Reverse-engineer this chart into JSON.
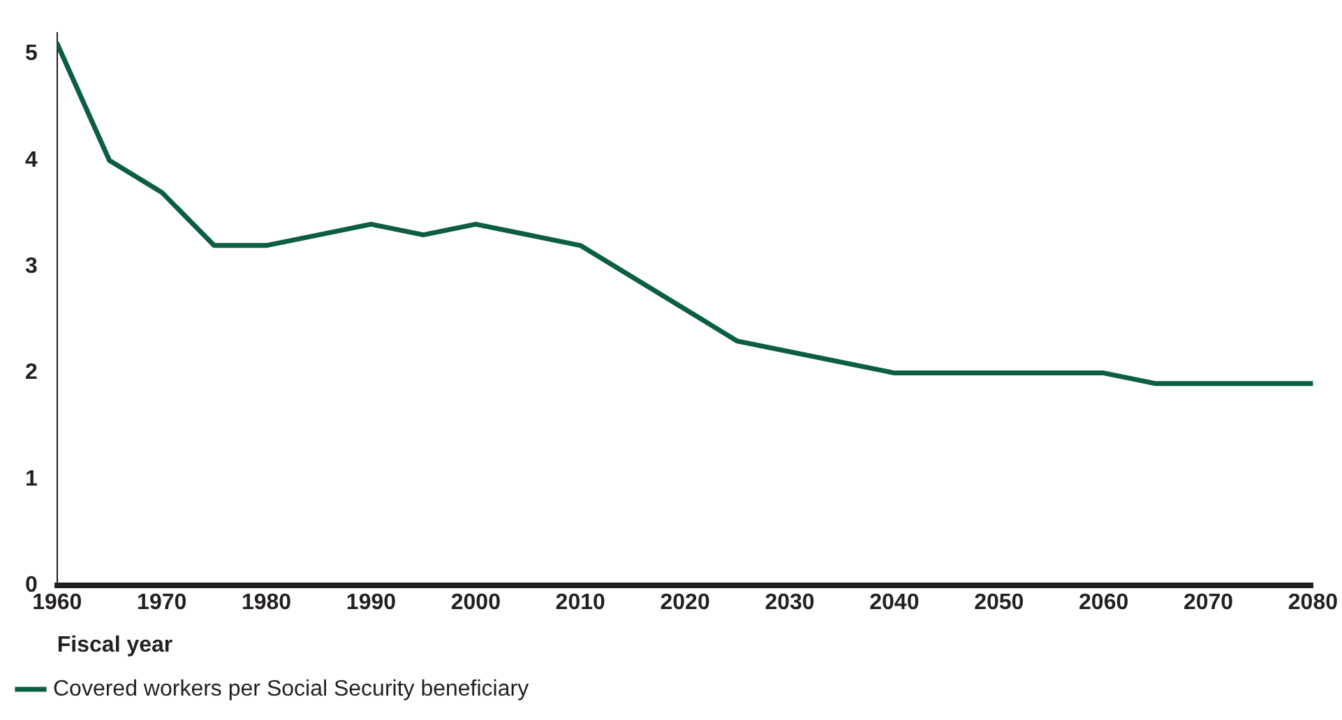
{
  "chart_data": {
    "type": "line",
    "xlabel": "Fiscal year",
    "x": [
      1960,
      1965,
      1970,
      1975,
      1980,
      1990,
      1995,
      2000,
      2010,
      2025,
      2040,
      2060,
      2065,
      2080
    ],
    "series": [
      {
        "name": "Covered workers per Social Security beneficiary",
        "color": "#0b5e3f",
        "values": [
          5.1,
          4.0,
          3.7,
          3.2,
          3.2,
          3.4,
          3.3,
          3.4,
          3.2,
          2.3,
          2.0,
          2.0,
          1.9,
          1.9
        ]
      }
    ],
    "xlim": [
      1960,
      2080
    ],
    "xticks": [
      1960,
      1970,
      1980,
      1990,
      2000,
      2010,
      2020,
      2030,
      2040,
      2050,
      2060,
      2070,
      2080
    ],
    "ylim": [
      0,
      5.2
    ],
    "yticks": [
      0,
      1,
      2,
      3,
      4,
      5
    ],
    "grid": false,
    "legend": "bottom left",
    "marker": "none",
    "line_style": "solid"
  }
}
